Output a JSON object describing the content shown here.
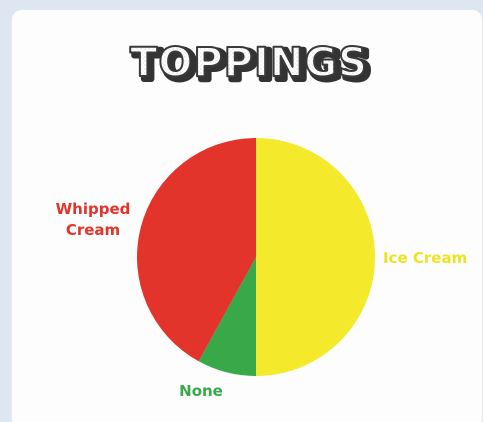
{
  "chart_data": {
    "type": "pie",
    "title": "TOPPINGS",
    "start_angle_deg": 0,
    "direction": "clockwise",
    "slices": [
      {
        "label_lines": [
          "Ice Cream"
        ],
        "value": 50,
        "color": "#f4e92a"
      },
      {
        "label_lines": [
          "None"
        ],
        "value": 8,
        "color": "#38a848"
      },
      {
        "label_lines": [
          "Whipped",
          "Cream"
        ],
        "value": 42,
        "color": "#e2342a"
      }
    ],
    "legend": "none"
  }
}
